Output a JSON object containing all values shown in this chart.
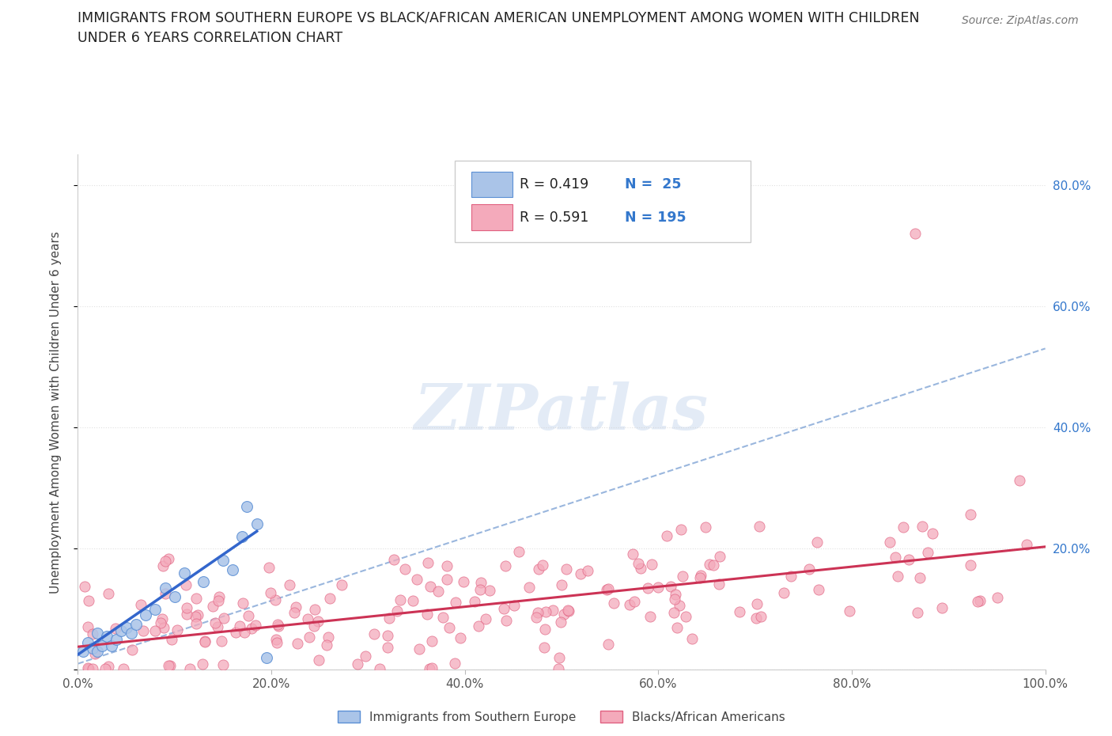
{
  "title_line1": "IMMIGRANTS FROM SOUTHERN EUROPE VS BLACK/AFRICAN AMERICAN UNEMPLOYMENT AMONG WOMEN WITH CHILDREN",
  "title_line2": "UNDER 6 YEARS CORRELATION CHART",
  "source": "Source: ZipAtlas.com",
  "ylabel": "Unemployment Among Women with Children Under 6 years",
  "xlim": [
    0.0,
    1.0
  ],
  "ylim": [
    0.0,
    0.85
  ],
  "xticks": [
    0.0,
    0.2,
    0.4,
    0.6,
    0.8,
    1.0
  ],
  "xticklabels": [
    "0.0%",
    "20.0%",
    "40.0%",
    "60.0%",
    "80.0%",
    "100.0%"
  ],
  "yticks_right": [
    0.2,
    0.4,
    0.6,
    0.8
  ],
  "yticklabels_right": [
    "20.0%",
    "40.0%",
    "60.0%",
    "80.0%"
  ],
  "legend_labels": [
    "Immigrants from Southern Europe",
    "Blacks/African Americans"
  ],
  "dot_color_blue": "#aac4e8",
  "dot_color_pink": "#f4aabb",
  "edge_color_blue": "#5b8fd5",
  "edge_color_pink": "#e06080",
  "trend_color_blue_solid": "#3366cc",
  "trend_color_pink_solid": "#cc3355",
  "trend_color_blue_dash": "#88aad8",
  "background_color": "#ffffff",
  "watermark_text": "ZIPatlas",
  "grid_color": "#cccccc",
  "grid_linestyle": "--",
  "grid_alpha": 0.6,
  "title_color": "#222222",
  "source_color": "#777777",
  "tick_color_blue": "#3377cc",
  "ylabel_color": "#444444"
}
